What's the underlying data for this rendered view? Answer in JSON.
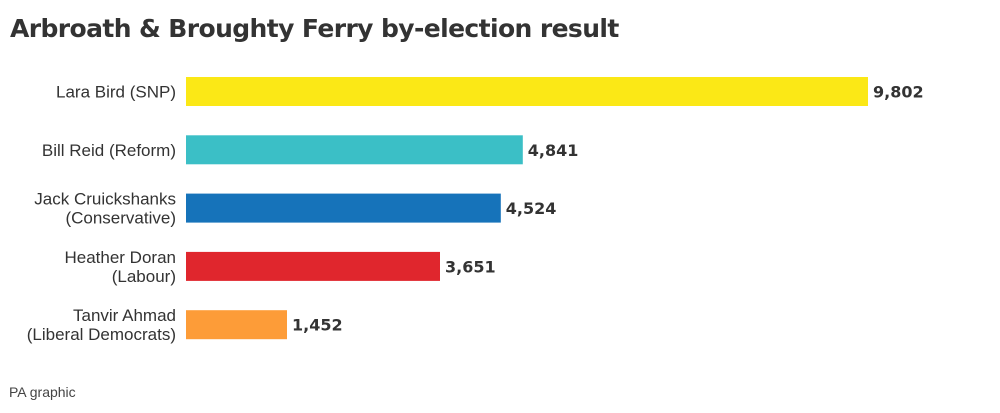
{
  "chart_data": {
    "type": "bar",
    "orientation": "horizontal",
    "title": "Arbroath & Broughty Ferry by-election result",
    "categories": [
      [
        "Lara Bird (SNP)"
      ],
      [
        "Bill Reid (Reform)"
      ],
      [
        "Jack Cruickshanks",
        "(Conservative)"
      ],
      [
        "Heather Doran",
        "(Labour)"
      ],
      [
        "Tanvir Ahmad",
        "(Liberal Democrats)"
      ]
    ],
    "values": [
      9802,
      4841,
      4524,
      3651,
      1452
    ],
    "value_labels": [
      "9,802",
      "4,841",
      "4,524",
      "3,651",
      "1,452"
    ],
    "colors": [
      "#FBE816",
      "#3BBFC6",
      "#1673BA",
      "#E0262D",
      "#FD9C38"
    ],
    "xlim": [
      0,
      9802
    ],
    "grid": false,
    "legend": "none"
  },
  "source": "PA graphic"
}
